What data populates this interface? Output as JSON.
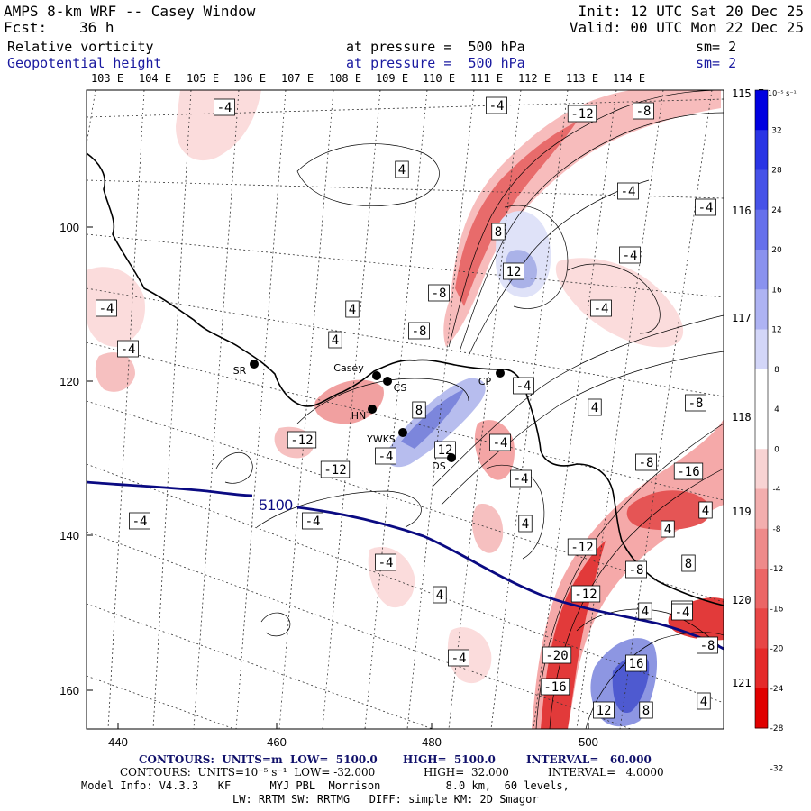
{
  "header": {
    "model": "AMPS 8-km WRF -- Casey Window",
    "fcst_label": "Fcst:",
    "fcst_value": "36 h",
    "init": "Init: 12 UTC Sat 20 Dec 25",
    "valid": "Valid: 00 UTC Mon 22 Dec 25",
    "field1": "Relative vorticity",
    "field1_level": "at pressure =  500 hPa",
    "field1_sm": "sm= 2",
    "field2": "Geopotential height",
    "field2_level": "at pressure =  500 hPa",
    "field2_sm": "sm= 2"
  },
  "longitude_labels_top": [
    "103 E",
    "104 E",
    "105 E",
    "106 E",
    "107 E",
    "108 E",
    "109 E",
    "110 E",
    "111 E",
    "112 E",
    "113 E",
    "114 E"
  ],
  "longitude_labels_right": [
    "115 E",
    "116 E",
    "117 E",
    "118 E",
    "119 E",
    "120 E",
    "121 E"
  ],
  "grid_x_ticks": [
    "440",
    "460",
    "480",
    "500"
  ],
  "grid_y_ticks": [
    "100",
    "120",
    "140",
    "160"
  ],
  "stations": [
    {
      "id": "SR",
      "name": "SR"
    },
    {
      "id": "Casey",
      "name": "Casey"
    },
    {
      "id": "CS",
      "name": "CS"
    },
    {
      "id": "HN",
      "name": "HN"
    },
    {
      "id": "YWKS",
      "name": "YWKS"
    },
    {
      "id": "DS",
      "name": "DS"
    },
    {
      "id": "CP",
      "name": "CP"
    }
  ],
  "height_contour_label": "5100",
  "vort_labels": [
    "-4",
    "-4",
    "4",
    "-4",
    "-12",
    "-8",
    "-4",
    "-4",
    "8",
    "12",
    "-4",
    "-8",
    "-4",
    "4",
    "-8",
    "4",
    "-4",
    "-4",
    "4",
    "-8",
    "-12",
    "-4",
    "12",
    "8",
    "-4",
    "-12",
    "-4",
    "-8",
    "-16",
    "4",
    "-4",
    "-4",
    "4",
    "4",
    "-12",
    "-8",
    "8",
    "-12",
    "4",
    "-4",
    "4",
    "-20",
    "16",
    "-4",
    "-16",
    "12",
    "8",
    "4",
    "-8",
    "-4",
    "-4"
  ],
  "colorbar": {
    "unit": "10⁻⁵ s⁻¹",
    "ticks": [
      "32",
      "28",
      "24",
      "20",
      "16",
      "12",
      "8",
      "4",
      "0",
      "-4",
      "-8",
      "-12",
      "-16",
      "-20",
      "-24",
      "-28",
      "-32"
    ]
  },
  "footer": {
    "line1_a": "CONTOURS:  UNITS=m  LOW=  5100.0",
    "line1_b": "HIGH=  5100.0",
    "line1_c": "INTERVAL=   60.000",
    "line2_a": "CONTOURS:  UNITS=10⁻⁵ s⁻¹  LOW= -32.000",
    "line2_b": "HIGH=  32.000",
    "line2_c": "INTERVAL=   4.0000",
    "line3": "Model Info: V4.3.3   KF      MYJ PBL  Morrison          8.0 km,  60 levels,",
    "line4": "LW: RRTM SW: RRTMG   DIFF: simple KM: 2D Smagor"
  }
}
